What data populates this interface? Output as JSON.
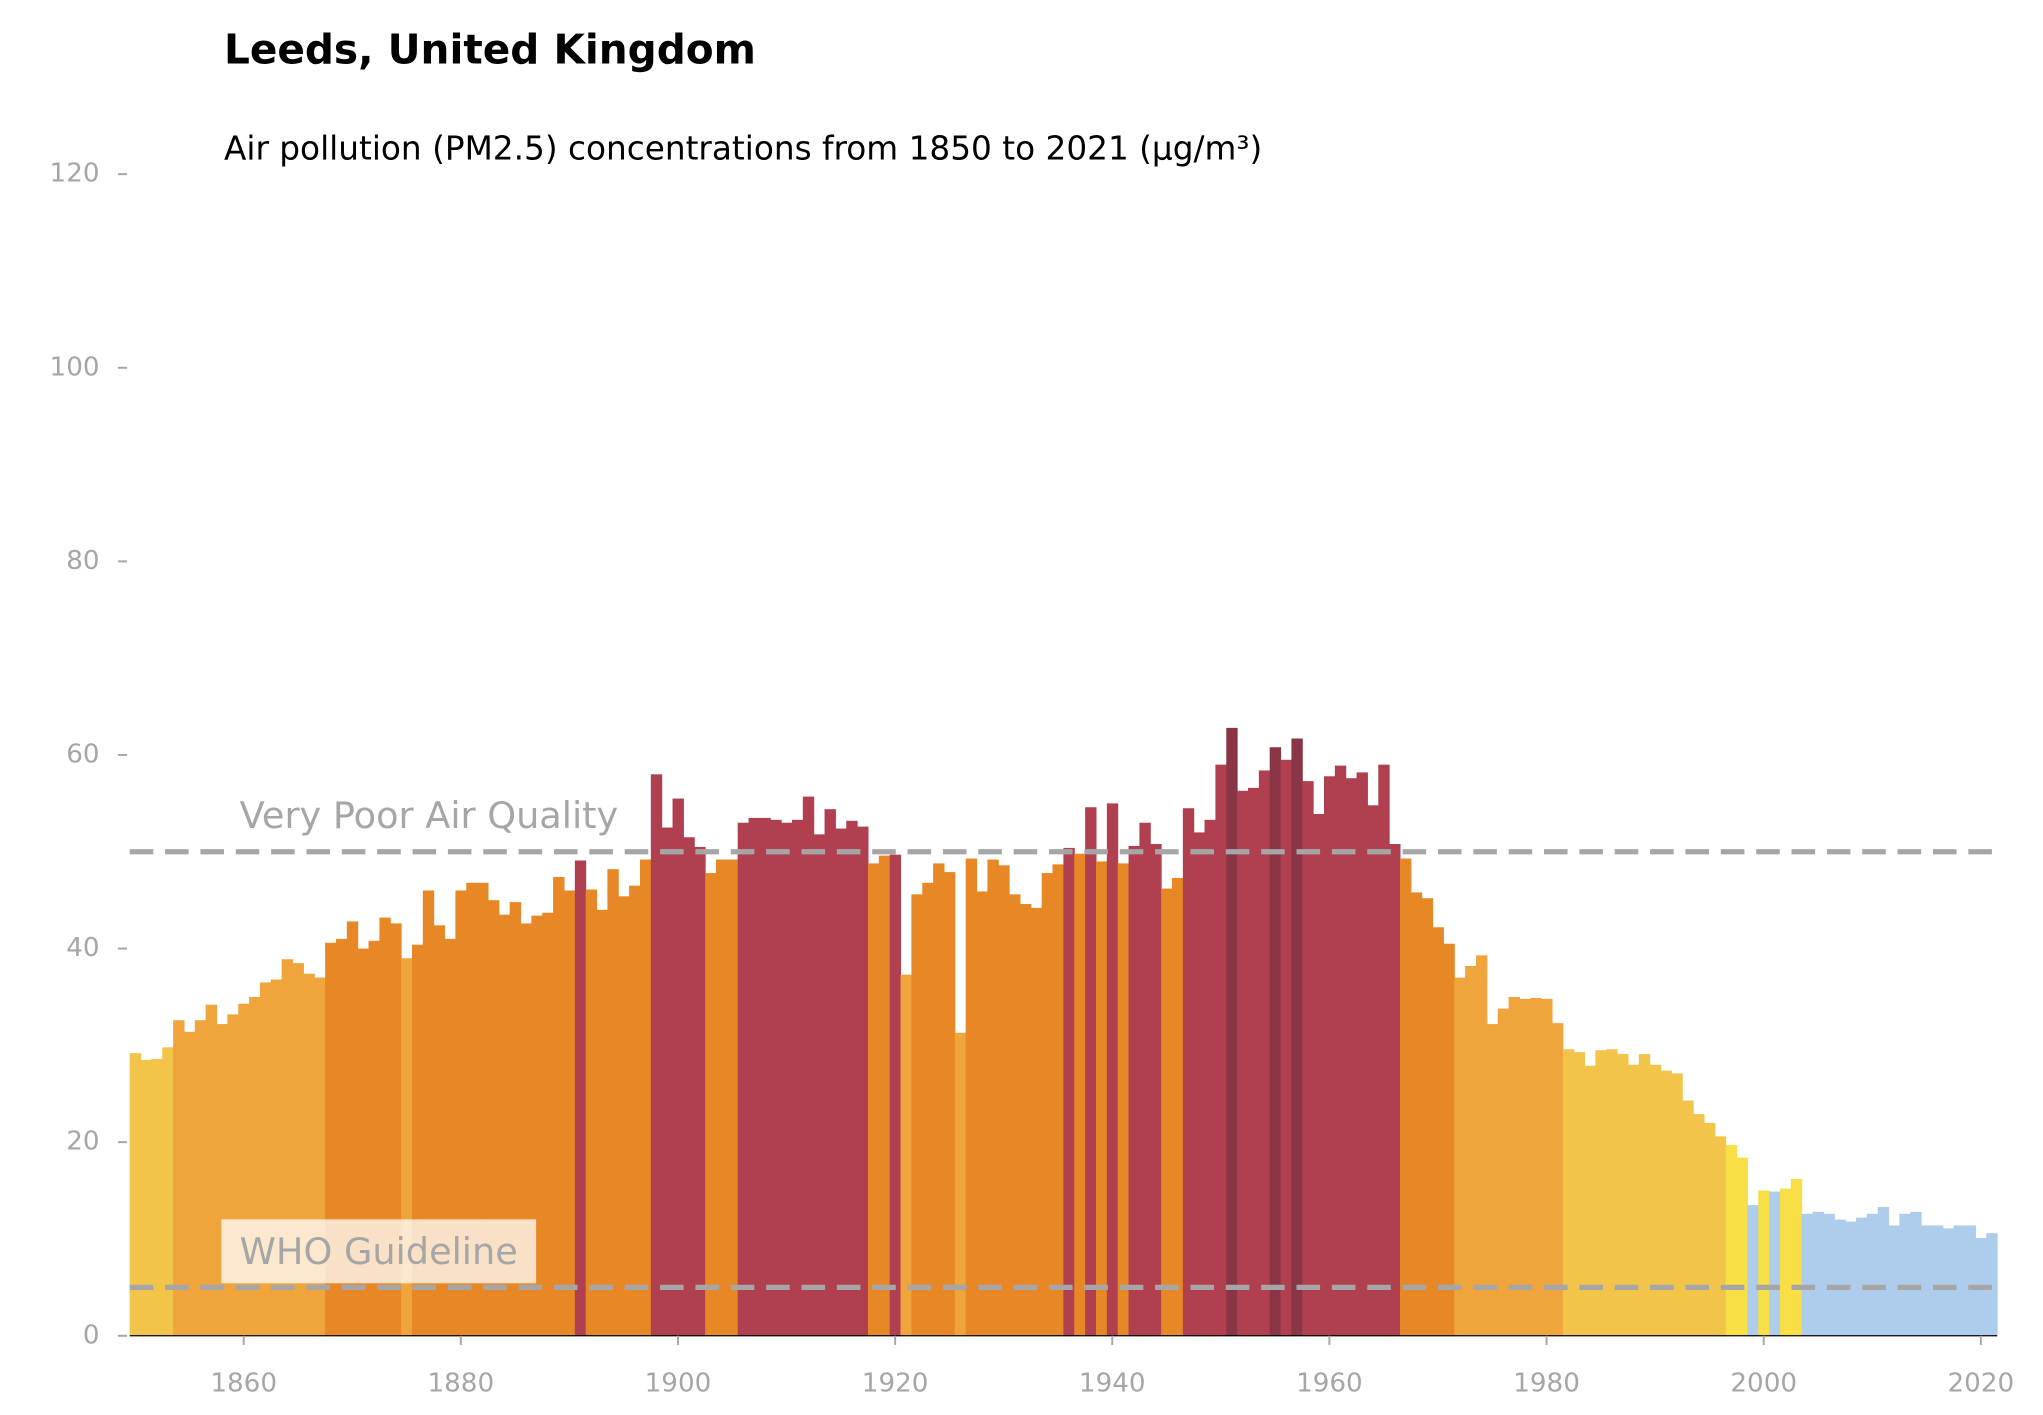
{
  "chart_data": {
    "type": "bar",
    "title": "Leeds, United Kingdom",
    "subtitle": "Air pollution (PM2.5) concentrations from 1850 to 2021 (µg/m³)",
    "x": [
      1850,
      1851,
      1852,
      1853,
      1854,
      1855,
      1856,
      1857,
      1858,
      1859,
      1860,
      1861,
      1862,
      1863,
      1864,
      1865,
      1866,
      1867,
      1868,
      1869,
      1870,
      1871,
      1872,
      1873,
      1874,
      1875,
      1876,
      1877,
      1878,
      1879,
      1880,
      1881,
      1882,
      1883,
      1884,
      1885,
      1886,
      1887,
      1888,
      1889,
      1890,
      1891,
      1892,
      1893,
      1894,
      1895,
      1896,
      1897,
      1898,
      1899,
      1900,
      1901,
      1902,
      1903,
      1904,
      1905,
      1906,
      1907,
      1908,
      1909,
      1910,
      1911,
      1912,
      1913,
      1914,
      1915,
      1916,
      1917,
      1918,
      1919,
      1920,
      1921,
      1922,
      1923,
      1924,
      1925,
      1926,
      1927,
      1928,
      1929,
      1930,
      1931,
      1932,
      1933,
      1934,
      1935,
      1936,
      1937,
      1938,
      1939,
      1940,
      1941,
      1942,
      1943,
      1944,
      1945,
      1946,
      1947,
      1948,
      1949,
      1950,
      1951,
      1952,
      1953,
      1954,
      1955,
      1956,
      1957,
      1958,
      1959,
      1960,
      1961,
      1962,
      1963,
      1964,
      1965,
      1966,
      1967,
      1968,
      1969,
      1970,
      1971,
      1972,
      1973,
      1974,
      1975,
      1976,
      1977,
      1978,
      1979,
      1980,
      1981,
      1982,
      1983,
      1984,
      1985,
      1986,
      1987,
      1988,
      1989,
      1990,
      1991,
      1992,
      1993,
      1994,
      1995,
      1996,
      1997,
      1998,
      1999,
      2000,
      2001,
      2002,
      2003,
      2004,
      2005,
      2006,
      2007,
      2008,
      2009,
      2010,
      2011,
      2012,
      2013,
      2014,
      2015,
      2016,
      2017,
      2018,
      2019,
      2020,
      2021
    ],
    "values": [
      29.2,
      28.5,
      28.6,
      29.8,
      32.6,
      31.4,
      32.6,
      34.2,
      32.2,
      33.2,
      34.3,
      35.0,
      36.5,
      36.8,
      38.9,
      38.5,
      37.4,
      37.0,
      40.6,
      41.0,
      42.8,
      40.0,
      40.8,
      43.2,
      42.6,
      39.0,
      40.4,
      46.0,
      42.4,
      41.0,
      46.0,
      46.8,
      46.8,
      45.0,
      43.5,
      44.8,
      42.6,
      43.4,
      43.7,
      47.4,
      46.0,
      49.1,
      46.1,
      44.0,
      48.2,
      45.4,
      46.5,
      49.2,
      58.0,
      52.5,
      55.5,
      51.5,
      50.5,
      47.8,
      49.2,
      49.2,
      53.0,
      53.5,
      53.5,
      53.3,
      53.0,
      53.3,
      55.7,
      51.8,
      54.4,
      52.4,
      53.2,
      52.6,
      48.8,
      49.6,
      49.7,
      37.3,
      45.6,
      46.8,
      48.8,
      47.9,
      31.3,
      49.3,
      45.9,
      49.2,
      48.6,
      45.6,
      44.6,
      44.2,
      47.8,
      48.7,
      50.4,
      49.8,
      54.6,
      49.0,
      55.0,
      48.8,
      50.6,
      53.0,
      50.8,
      46.2,
      47.3,
      54.5,
      52.0,
      53.3,
      59.0,
      62.8,
      56.3,
      56.6,
      58.4,
      60.8,
      59.5,
      61.7,
      57.3,
      53.9,
      57.8,
      58.9,
      57.6,
      58.2,
      54.8,
      59.0,
      50.8,
      49.3,
      45.8,
      45.2,
      42.2,
      40.5,
      37.0,
      38.2,
      39.3,
      32.2,
      33.8,
      35.0,
      34.8,
      34.9,
      34.8,
      32.3,
      29.6,
      29.3,
      27.9,
      29.5,
      29.6,
      29.1,
      28.0,
      29.1,
      28.0,
      27.4,
      27.1,
      24.3,
      22.9,
      22.0,
      20.6,
      19.7,
      18.4,
      13.5,
      15.0,
      14.9,
      15.2,
      16.2,
      12.6,
      12.8,
      12.6,
      12.0,
      11.8,
      12.2,
      12.6,
      13.3,
      11.4,
      12.6,
      12.8,
      11.4,
      11.4,
      11.1,
      11.4,
      11.4,
      10.1,
      10.6
    ],
    "colors": [
      "#f2c54a",
      "#f2c54a",
      "#f2c54a",
      "#f2c54a",
      "#f0a43c",
      "#f0a43c",
      "#f0a43c",
      "#f0a43c",
      "#f0a43c",
      "#f0a43c",
      "#f0a43c",
      "#f0a43c",
      "#f0a43c",
      "#f0a43c",
      "#f0a43c",
      "#f0a43c",
      "#f0a43c",
      "#f0a43c",
      "#e88726",
      "#e88726",
      "#e88726",
      "#e88726",
      "#e88726",
      "#e88726",
      "#e88726",
      "#f0a43c",
      "#e88726",
      "#e88726",
      "#e88726",
      "#e88726",
      "#e88726",
      "#e88726",
      "#e88726",
      "#e88726",
      "#e88726",
      "#e88726",
      "#e88726",
      "#e88726",
      "#e88726",
      "#e88726",
      "#e88726",
      "#b04050",
      "#e88726",
      "#e88726",
      "#e88726",
      "#e88726",
      "#e88726",
      "#e88726",
      "#b04050",
      "#b04050",
      "#b04050",
      "#b04050",
      "#b04050",
      "#e88726",
      "#e88726",
      "#e88726",
      "#b04050",
      "#b04050",
      "#b04050",
      "#b04050",
      "#b04050",
      "#b04050",
      "#b04050",
      "#b04050",
      "#b04050",
      "#b04050",
      "#b04050",
      "#b04050",
      "#e88726",
      "#e88726",
      "#b04050",
      "#f0a43c",
      "#e88726",
      "#e88726",
      "#e88726",
      "#e88726",
      "#f0a43c",
      "#e88726",
      "#e88726",
      "#e88726",
      "#e88726",
      "#e88726",
      "#e88726",
      "#e88726",
      "#e88726",
      "#e88726",
      "#b04050",
      "#e88726",
      "#b04050",
      "#e88726",
      "#b04050",
      "#e88726",
      "#b04050",
      "#b04050",
      "#b04050",
      "#e88726",
      "#e88726",
      "#b04050",
      "#b04050",
      "#b04050",
      "#b04050",
      "#8a3545",
      "#b04050",
      "#b04050",
      "#b04050",
      "#8a3545",
      "#b04050",
      "#8a3545",
      "#b04050",
      "#b04050",
      "#b04050",
      "#b04050",
      "#b04050",
      "#b04050",
      "#b04050",
      "#b04050",
      "#b04050",
      "#e88726",
      "#e88726",
      "#e88726",
      "#e88726",
      "#e88726",
      "#f0a43c",
      "#f0a43c",
      "#f0a43c",
      "#f0a43c",
      "#f0a43c",
      "#f0a43c",
      "#f0a43c",
      "#f0a43c",
      "#f0a43c",
      "#f0a43c",
      "#f2c54a",
      "#f2c54a",
      "#f2c54a",
      "#f2c54a",
      "#f2c54a",
      "#f2c54a",
      "#f2c54a",
      "#f2c54a",
      "#f2c54a",
      "#f2c54a",
      "#f2c54a",
      "#f2c54a",
      "#f2c54a",
      "#f2c54a",
      "#f2c54a",
      "#f7df45",
      "#f7df45",
      "#aecdec",
      "#f7df45",
      "#aecdec",
      "#f7df45",
      "#f7df45",
      "#aecdec",
      "#aecdec",
      "#aecdec",
      "#aecdec",
      "#aecdec",
      "#aecdec",
      "#aecdec",
      "#aecdec",
      "#aecdec",
      "#aecdec",
      "#aecdec",
      "#aecdec",
      "#aecdec",
      "#aecdec",
      "#aecdec",
      "#aecdec",
      "#aecdec",
      "#aecdec"
    ],
    "xlim": [
      1849.5,
      2021.5
    ],
    "xticks": [
      1860,
      1880,
      1900,
      1920,
      1940,
      1960,
      1980,
      2000,
      2020
    ],
    "ylim": [
      0,
      120
    ],
    "yticks": [
      0,
      20,
      40,
      60,
      80,
      100,
      120
    ],
    "reference_lines": [
      {
        "value": 50,
        "label": "Very Poor Air Quality"
      },
      {
        "value": 5,
        "label": "WHO Guideline"
      }
    ]
  }
}
